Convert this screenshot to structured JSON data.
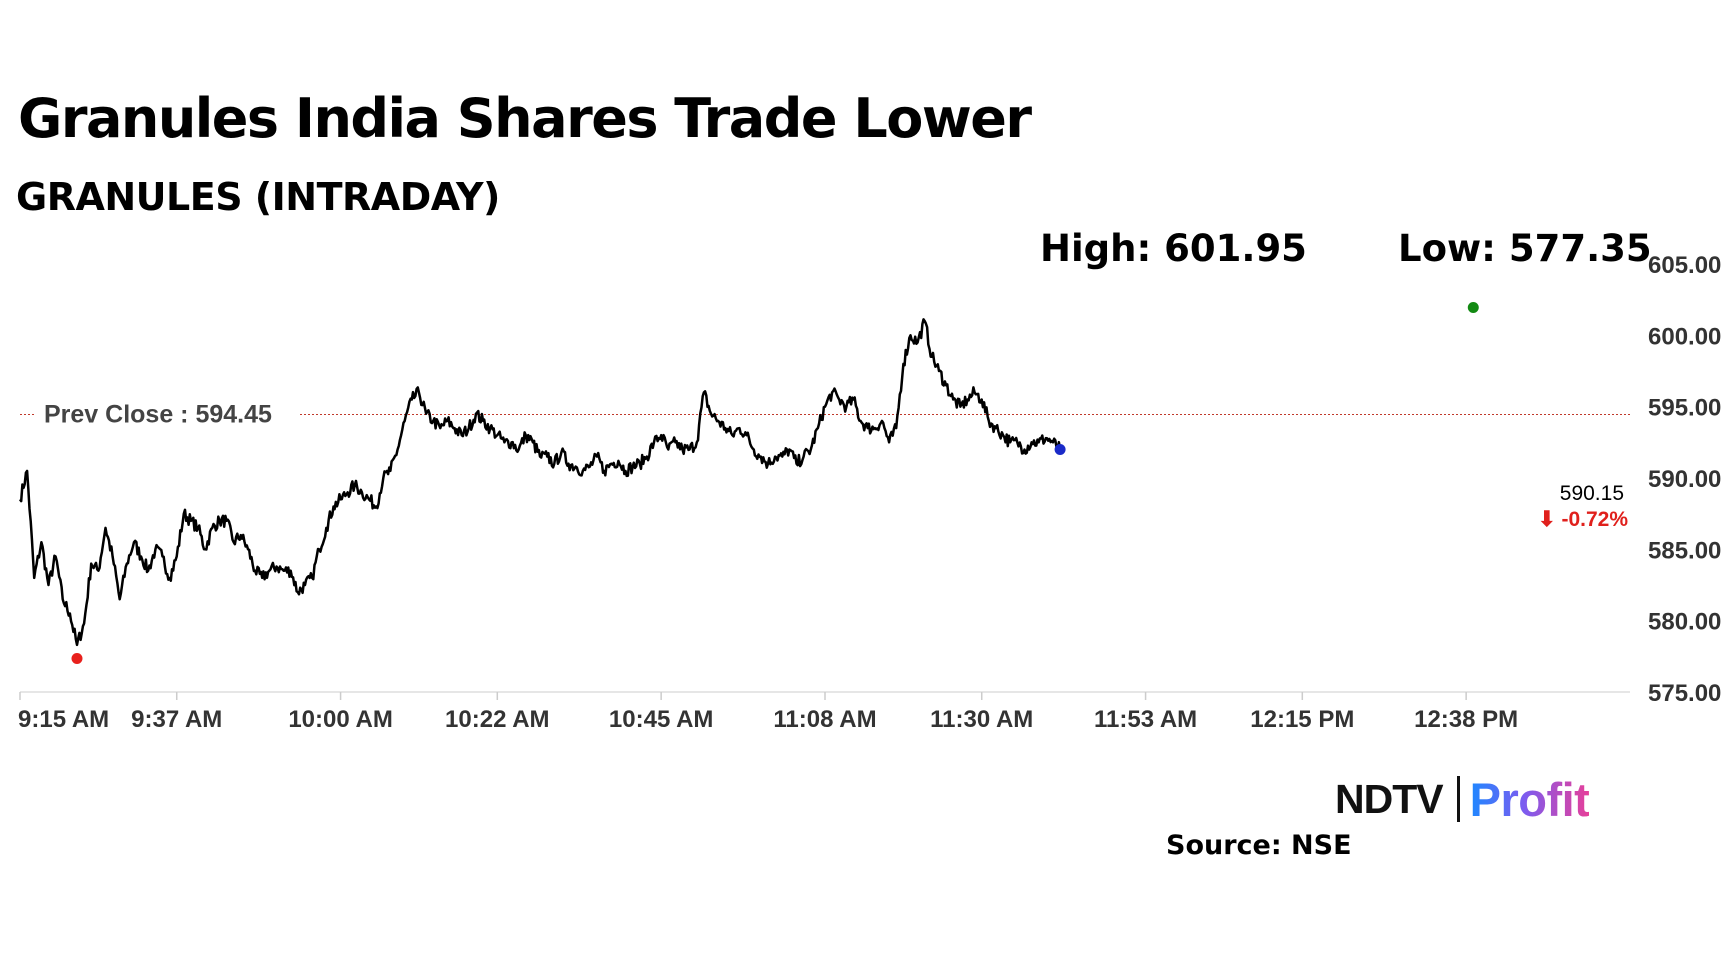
{
  "header": {
    "title": "Granules India Shares Trade Lower",
    "subtitle": "GRANULES (INTRADAY)"
  },
  "stats": {
    "high": "High: 601.95",
    "low": "Low: 577.35"
  },
  "footer": {
    "logo_main": "NDTV",
    "logo_sub": "Profit",
    "source": "Source: NSE"
  },
  "colors": {
    "line": "#000000",
    "prev_close": "#c0392b",
    "high_dot": "#138a13",
    "low_dot": "#e8201c",
    "last_dot": "#1a2ac8",
    "change_negative": "#e0201c"
  },
  "chart_data": {
    "type": "line",
    "title": "Granules India Shares Trade Lower",
    "subtitle": "GRANULES (INTRADAY)",
    "x_ticks": [
      "9:15 AM",
      "9:37 AM",
      "10:00 AM",
      "10:22 AM",
      "10:45 AM",
      "11:08 AM",
      "11:30 AM",
      "11:53 AM",
      "12:15 PM",
      "12:38 PM"
    ],
    "x_tick_minutes": [
      555,
      577,
      600,
      622,
      645,
      668,
      690,
      713,
      735,
      758
    ],
    "x_range_minutes": [
      555,
      781
    ],
    "y_ticks": [
      "605.00",
      "600.00",
      "595.00",
      "590.00",
      "585.00",
      "580.00",
      "575.00"
    ],
    "ylim": [
      575,
      605
    ],
    "grid": false,
    "prev_close": {
      "label": "Prev Close : 594.45",
      "value": 594.45
    },
    "high": {
      "value": 601.95,
      "minute": 759
    },
    "low": {
      "value": 577.35,
      "minute": 563
    },
    "last": {
      "value": 590.15,
      "price_label": "590.15",
      "change_label": "⬇ -0.72%"
    },
    "series": [
      {
        "points": [
          [
            555,
            588.5
          ],
          [
            556,
            590.5
          ],
          [
            557,
            583.0
          ],
          [
            558,
            585.5
          ],
          [
            559,
            582.5
          ],
          [
            560,
            584.5
          ],
          [
            561,
            581.5
          ],
          [
            562,
            580.5
          ],
          [
            563,
            578.3
          ],
          [
            564,
            579.8
          ],
          [
            565,
            584.0
          ],
          [
            566,
            583.5
          ],
          [
            567,
            586.5
          ],
          [
            568,
            584.5
          ],
          [
            569,
            581.5
          ],
          [
            570,
            584.0
          ],
          [
            571,
            585.5
          ],
          [
            572,
            584.5
          ],
          [
            573,
            583.5
          ],
          [
            574,
            585.0
          ],
          [
            575,
            584.5
          ],
          [
            576,
            583.0
          ],
          [
            577,
            584.5
          ],
          [
            578,
            587.5
          ],
          [
            579,
            587.0
          ],
          [
            580,
            586.5
          ],
          [
            581,
            585.0
          ],
          [
            582,
            586.5
          ],
          [
            583,
            587.0
          ],
          [
            584,
            587.0
          ],
          [
            585,
            585.5
          ],
          [
            586,
            586.0
          ],
          [
            587,
            585.0
          ],
          [
            588,
            583.5
          ],
          [
            589,
            583.0
          ],
          [
            590,
            583.5
          ],
          [
            591,
            583.8
          ],
          [
            592,
            583.5
          ],
          [
            593,
            583.5
          ],
          [
            594,
            582.0
          ],
          [
            595,
            582.5
          ],
          [
            596,
            583.0
          ],
          [
            597,
            585.0
          ],
          [
            598,
            586.5
          ],
          [
            599,
            588.0
          ],
          [
            600,
            588.5
          ],
          [
            601,
            589.0
          ],
          [
            602,
            589.5
          ],
          [
            603,
            589.0
          ],
          [
            604,
            588.5
          ],
          [
            605,
            588.0
          ],
          [
            606,
            590.0
          ],
          [
            607,
            590.5
          ],
          [
            608,
            592.0
          ],
          [
            609,
            594.0
          ],
          [
            610,
            595.5
          ],
          [
            611,
            596.0
          ],
          [
            612,
            594.5
          ],
          [
            613,
            594.0
          ],
          [
            614,
            593.5
          ],
          [
            615,
            594.0
          ],
          [
            616,
            593.5
          ],
          [
            617,
            593.0
          ],
          [
            618,
            593.5
          ],
          [
            619,
            594.5
          ],
          [
            620,
            594.0
          ],
          [
            621,
            593.5
          ],
          [
            622,
            593.0
          ],
          [
            623,
            592.5
          ],
          [
            624,
            592.5
          ],
          [
            625,
            592.0
          ],
          [
            626,
            593.0
          ],
          [
            627,
            592.5
          ],
          [
            628,
            591.5
          ],
          [
            629,
            591.5
          ],
          [
            630,
            591.0
          ],
          [
            631,
            591.8
          ],
          [
            632,
            591.0
          ],
          [
            633,
            590.8
          ],
          [
            634,
            590.5
          ],
          [
            635,
            590.8
          ],
          [
            636,
            591.5
          ],
          [
            637,
            590.5
          ],
          [
            638,
            591.0
          ],
          [
            639,
            591.2
          ],
          [
            640,
            590.5
          ],
          [
            641,
            590.8
          ],
          [
            642,
            591.0
          ],
          [
            643,
            591.5
          ],
          [
            644,
            592.5
          ],
          [
            645,
            593.0
          ],
          [
            646,
            592.0
          ],
          [
            647,
            592.5
          ],
          [
            648,
            592.0
          ],
          [
            649,
            592.0
          ],
          [
            650,
            592.5
          ],
          [
            651,
            596.0
          ],
          [
            652,
            594.5
          ],
          [
            653,
            594.0
          ],
          [
            654,
            593.5
          ],
          [
            655,
            593.0
          ],
          [
            656,
            593.5
          ],
          [
            657,
            593.0
          ],
          [
            658,
            592.0
          ],
          [
            659,
            591.5
          ],
          [
            660,
            591.0
          ],
          [
            661,
            591.5
          ],
          [
            662,
            591.5
          ],
          [
            663,
            592.0
          ],
          [
            664,
            591.0
          ],
          [
            665,
            591.5
          ],
          [
            666,
            592.0
          ],
          [
            667,
            593.5
          ],
          [
            668,
            595.0
          ],
          [
            669,
            596.0
          ],
          [
            670,
            595.5
          ],
          [
            671,
            595.0
          ],
          [
            672,
            595.5
          ],
          [
            673,
            594.0
          ],
          [
            674,
            593.5
          ],
          [
            675,
            593.5
          ],
          [
            676,
            594.0
          ],
          [
            677,
            592.5
          ],
          [
            678,
            593.5
          ],
          [
            679,
            598.0
          ],
          [
            680,
            600.0
          ],
          [
            681,
            599.5
          ],
          [
            682,
            601.0
          ],
          [
            683,
            598.5
          ],
          [
            684,
            597.5
          ],
          [
            685,
            596.5
          ],
          [
            686,
            595.5
          ],
          [
            687,
            595.0
          ],
          [
            688,
            595.5
          ],
          [
            689,
            596.0
          ],
          [
            690,
            595.5
          ],
          [
            691,
            594.0
          ],
          [
            692,
            593.5
          ],
          [
            693,
            593.0
          ],
          [
            694,
            592.5
          ],
          [
            695,
            592.5
          ],
          [
            696,
            592.0
          ],
          [
            697,
            592.5
          ],
          [
            698,
            592.5
          ],
          [
            699,
            592.8
          ],
          [
            700,
            592.5
          ],
          [
            701,
            592.0
          ]
        ]
      }
    ]
  }
}
